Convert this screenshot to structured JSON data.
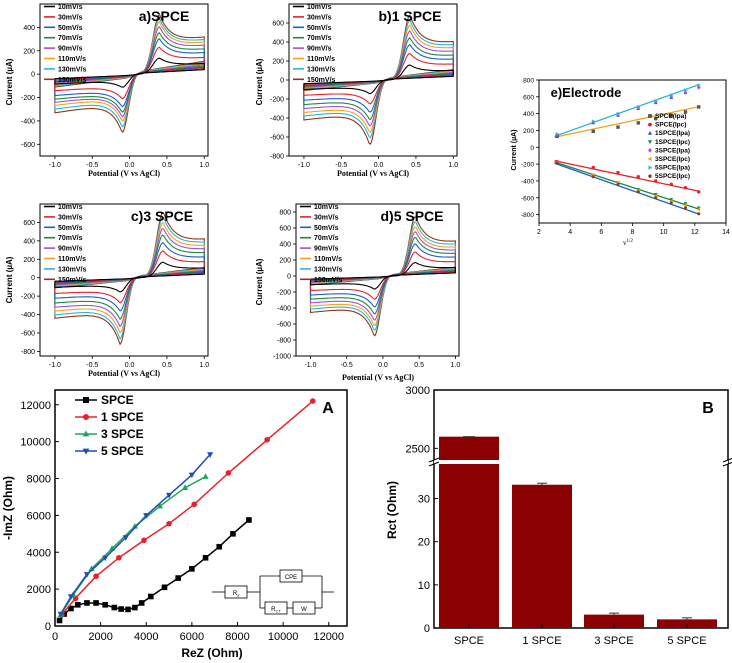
{
  "palette": {
    "10mV/s": "#000000",
    "30mV/s": "#e8202a",
    "50mV/s": "#1f5fc9",
    "70mV/s": "#1e8a3c",
    "90mV/s": "#a64fd0",
    "110mV/s": "#f5a11c",
    "130mV/s": "#2cb4d8",
    "150mV/s": "#8b3a1a"
  },
  "chart_data": [
    {
      "id": "a",
      "type": "line",
      "title": "a)SPCE",
      "xlabel": "Potential (V vs AgCl)",
      "ylabel": "Current (µA)",
      "xlim": [
        -1.2,
        1.05
      ],
      "ylim": [
        -700,
        600
      ],
      "xticks": [
        "-1.0",
        "-0.5",
        "0.0",
        "0.5",
        "1.0"
      ],
      "xtick_values": [
        -1.0,
        -0.5,
        0.0,
        0.5,
        1.0
      ],
      "yticks": [
        "-600",
        "-400",
        "-200",
        "0",
        "200",
        "400"
      ],
      "ytick_values": [
        -600,
        -400,
        -200,
        0,
        200,
        400
      ],
      "legend": [
        "10mV/s",
        "30mV/s",
        "50mV/s",
        "70mV/s",
        "90mV/s",
        "110mV/s",
        "130mV/s",
        "150mV/s"
      ],
      "anodic_peak_uA": [
        130,
        220,
        290,
        340,
        390,
        430,
        460,
        490
      ],
      "cathodic_peak_uA": [
        -120,
        -220,
        -290,
        -340,
        -380,
        -420,
        -470,
        -520
      ],
      "Epa_V": 0.4,
      "Epc_V": -0.1
    },
    {
      "id": "b",
      "type": "line",
      "title": "b)1 SPCE",
      "xlabel": "Potential (V vs AgCl)",
      "ylabel": "Current (µA)",
      "xlim": [
        -1.2,
        1.05
      ],
      "ylim": [
        -800,
        800
      ],
      "xticks": [
        "-1.0",
        "-0.5",
        "0.0",
        "0.5",
        "1.0"
      ],
      "xtick_values": [
        -1.0,
        -0.5,
        0.0,
        0.5,
        1.0
      ],
      "yticks": [
        "-800",
        "-600",
        "-400",
        "-200",
        "0",
        "200",
        "400",
        "600"
      ],
      "ytick_values": [
        -800,
        -600,
        -400,
        -200,
        0,
        200,
        400,
        600
      ],
      "legend": [
        "10mV/s",
        "30mV/s",
        "50mV/s",
        "70mV/s",
        "90mV/s",
        "110mV/s",
        "130mV/s",
        "150mV/s"
      ],
      "anodic_peak_uA": [
        150,
        270,
        360,
        430,
        500,
        560,
        610,
        660
      ],
      "cathodic_peak_uA": [
        -150,
        -260,
        -350,
        -430,
        -500,
        -570,
        -630,
        -700
      ],
      "Epa_V": 0.42,
      "Epc_V": -0.12
    },
    {
      "id": "c",
      "type": "line",
      "title": "c)3 SPCE",
      "xlabel": "Potential (V vs AgCl)",
      "ylabel": "Current (µA)",
      "xlim": [
        -1.2,
        1.05
      ],
      "ylim": [
        -850,
        800
      ],
      "xticks": [
        "-1.0",
        "-0.5",
        "0.0",
        "0.5",
        "1.0"
      ],
      "xtick_values": [
        -1.0,
        -0.5,
        0.0,
        0.5,
        1.0
      ],
      "yticks": [
        "-800",
        "-600",
        "-400",
        "-200",
        "0",
        "200",
        "400",
        "600"
      ],
      "ytick_values": [
        -800,
        -600,
        -400,
        -200,
        0,
        200,
        400,
        600
      ],
      "legend": [
        "10mV/s",
        "30mV/s",
        "50mV/s",
        "70mV/s",
        "90mV/s",
        "110mV/s",
        "130mV/s",
        "150mV/s"
      ],
      "anodic_peak_uA": [
        160,
        280,
        370,
        450,
        520,
        580,
        640,
        690
      ],
      "cathodic_peak_uA": [
        -160,
        -280,
        -370,
        -460,
        -540,
        -610,
        -680,
        -740
      ],
      "Epa_V": 0.45,
      "Epc_V": -0.13
    },
    {
      "id": "d",
      "type": "line",
      "title": "d)5 SPCE",
      "xlabel": "Potential (V vs AgCl)",
      "ylabel": "Current (µA)",
      "xlim": [
        -1.2,
        1.05
      ],
      "ylim": [
        -1000,
        900
      ],
      "xticks": [
        "-1.0",
        "-0.5",
        "0.0",
        "0.5",
        "1.0"
      ],
      "xtick_values": [
        -1.0,
        -0.5,
        0.0,
        0.5,
        1.0
      ],
      "yticks": [
        "-1000",
        "-800",
        "-600",
        "-400",
        "-200",
        "0",
        "200",
        "400",
        "600",
        "800"
      ],
      "ytick_values": [
        -1000,
        -800,
        -600,
        -400,
        -200,
        0,
        200,
        400,
        600,
        800
      ],
      "legend": [
        "10mV/s",
        "30mV/s",
        "50mV/s",
        "70mV/s",
        "90mV/s",
        "110mV/s",
        "130mV/s",
        "150mV/s"
      ],
      "anodic_peak_uA": [
        160,
        290,
        390,
        470,
        540,
        600,
        660,
        720
      ],
      "cathodic_peak_uA": [
        -170,
        -300,
        -400,
        -490,
        -570,
        -640,
        -700,
        -770
      ],
      "Epa_V": 0.45,
      "Epc_V": -0.12
    },
    {
      "id": "e",
      "type": "scatter",
      "title": "e)Electrode",
      "xlabel": "v",
      "xlabel_sup": "1/2",
      "ylabel": "Current (µA)",
      "xlim": [
        2,
        14
      ],
      "ylim": [
        -900,
        800
      ],
      "xticks": [
        "2",
        "4",
        "6",
        "8",
        "10",
        "12",
        "14"
      ],
      "xtick_values": [
        2,
        4,
        6,
        8,
        10,
        12,
        14
      ],
      "yticks": [
        "-800",
        "-600",
        "-400",
        "-200",
        "0",
        "200",
        "400",
        "600",
        "800"
      ],
      "ytick_values": [
        -800,
        -600,
        -400,
        -200,
        0,
        200,
        400,
        600,
        800
      ],
      "x": [
        3.16,
        5.48,
        7.07,
        8.37,
        9.49,
        10.49,
        11.4,
        12.25
      ],
      "series": [
        {
          "name": "SPCE(Ipa)",
          "color": "#555555",
          "marker": "square",
          "values": [
            130,
            190,
            240,
            290,
            340,
            380,
            420,
            480
          ]
        },
        {
          "name": "SPCE(Ipc)",
          "color": "#e8202a",
          "marker": "circle",
          "values": [
            -170,
            -240,
            -300,
            -350,
            -400,
            -440,
            -480,
            -530
          ]
        },
        {
          "name": "1SPCE(Ipa)",
          "color": "#1f5fc9",
          "marker": "triangle-up",
          "values": [
            150,
            290,
            380,
            460,
            530,
            590,
            650,
            720
          ]
        },
        {
          "name": "1SPCE(Ipc)",
          "color": "#1e8a3c",
          "marker": "triangle-down",
          "values": [
            -180,
            -330,
            -420,
            -500,
            -560,
            -620,
            -670,
            -720
          ]
        },
        {
          "name": "3SPCE(Ipa)",
          "color": "#a64fd0",
          "marker": "diamond",
          "values": [
            150,
            300,
            390,
            470,
            540,
            600,
            650,
            710
          ]
        },
        {
          "name": "3SPCE(Ipc)",
          "color": "#f5a11c",
          "marker": "triangle-left",
          "values": [
            -180,
            -330,
            -420,
            -510,
            -580,
            -640,
            -690,
            -740
          ]
        },
        {
          "name": "5SPCE(Ipa)",
          "color": "#2cb4d8",
          "marker": "triangle-right",
          "values": [
            160,
            310,
            400,
            480,
            550,
            620,
            680,
            740
          ]
        },
        {
          "name": "5SPCE(Ipc)",
          "color": "#8b3a1a",
          "marker": "hexagon",
          "values": [
            -190,
            -350,
            -440,
            -530,
            -600,
            -660,
            -720,
            -790
          ]
        }
      ],
      "fit_lines": [
        {
          "color": "#f5a11c",
          "from": [
            3,
            120
          ],
          "to": [
            12.2,
            480
          ]
        },
        {
          "color": "#2cb4d8",
          "from": [
            3,
            130
          ],
          "to": [
            12.2,
            740
          ]
        },
        {
          "color": "#e8202a",
          "from": [
            3,
            -160
          ],
          "to": [
            12.2,
            -520
          ]
        },
        {
          "color": "#1e8a3c",
          "from": [
            3,
            -175
          ],
          "to": [
            12.2,
            -730
          ]
        },
        {
          "color": "#1f5fc9",
          "from": [
            3,
            -190
          ],
          "to": [
            12.2,
            -790
          ]
        }
      ]
    },
    {
      "id": "A",
      "type": "line",
      "title": "A",
      "xlabel": "ReZ (Ohm)",
      "ylabel": "-ImZ (Ohm)",
      "xlim": [
        0,
        12800
      ],
      "ylim": [
        0,
        12800
      ],
      "xticks": [
        "0",
        "2000",
        "4000",
        "6000",
        "8000",
        "10000",
        "12000"
      ],
      "xtick_values": [
        0,
        2000,
        4000,
        6000,
        8000,
        10000,
        12000
      ],
      "yticks": [
        "0",
        "2000",
        "4000",
        "6000",
        "8000",
        "10000",
        "12000"
      ],
      "ytick_values": [
        0,
        2000,
        4000,
        6000,
        8000,
        10000,
        12000
      ],
      "series": [
        {
          "name": "SPCE",
          "color": "#000000",
          "marker": "square",
          "x": [
            200,
            400,
            700,
            1000,
            1400,
            1800,
            2200,
            2600,
            2900,
            3200,
            3500,
            3800,
            4200,
            4800,
            5400,
            6000,
            6600,
            7200,
            7800,
            8500
          ],
          "y": [
            300,
            650,
            950,
            1150,
            1250,
            1250,
            1150,
            1000,
            920,
            900,
            1000,
            1250,
            1600,
            2100,
            2600,
            3100,
            3700,
            4300,
            5000,
            5750
          ]
        },
        {
          "name": "1 SPCE",
          "color": "#e8202a",
          "marker": "circle",
          "x": [
            300,
            900,
            1800,
            2800,
            3900,
            5000,
            6100,
            7600,
            9300,
            11300
          ],
          "y": [
            600,
            1500,
            2700,
            3700,
            4650,
            5550,
            6600,
            8300,
            10100,
            12200
          ]
        },
        {
          "name": "3 SPCE",
          "color": "#1fa35a",
          "marker": "triangle-up",
          "x": [
            250,
            800,
            1600,
            2500,
            3500,
            4600,
            5700,
            6600
          ],
          "y": [
            600,
            1700,
            3100,
            4200,
            5400,
            6500,
            7500,
            8100
          ]
        },
        {
          "name": "5 SPCE",
          "color": "#1f4fb0",
          "marker": "triangle-down",
          "x": [
            250,
            700,
            1400,
            2200,
            3100,
            4000,
            5000,
            6000,
            6800
          ],
          "y": [
            650,
            1600,
            2800,
            3700,
            4800,
            6000,
            7100,
            8200,
            9300
          ]
        }
      ],
      "circuit_labels": [
        "Rs",
        "CPE",
        "RCT",
        "W"
      ]
    },
    {
      "id": "B",
      "type": "bar",
      "title": "B",
      "ylabel": "Rct (Ohm)",
      "categories": [
        "SPCE",
        "1 SPCE",
        "3 SPCE",
        "5 SPCE"
      ],
      "values": [
        2600,
        33.2,
        3.1,
        2.0
      ],
      "bar_color": "#8b0000",
      "axis_break": true,
      "lower_ylim": [
        0,
        38
      ],
      "upper_ylim": [
        2400,
        3000
      ],
      "yticks_lower": [
        "0",
        "10",
        "20",
        "30"
      ],
      "ytick_values_lower": [
        0,
        10,
        20,
        30
      ],
      "yticks_upper": [
        "2500",
        "3000"
      ],
      "ytick_values_upper": [
        2500,
        3000
      ]
    }
  ]
}
